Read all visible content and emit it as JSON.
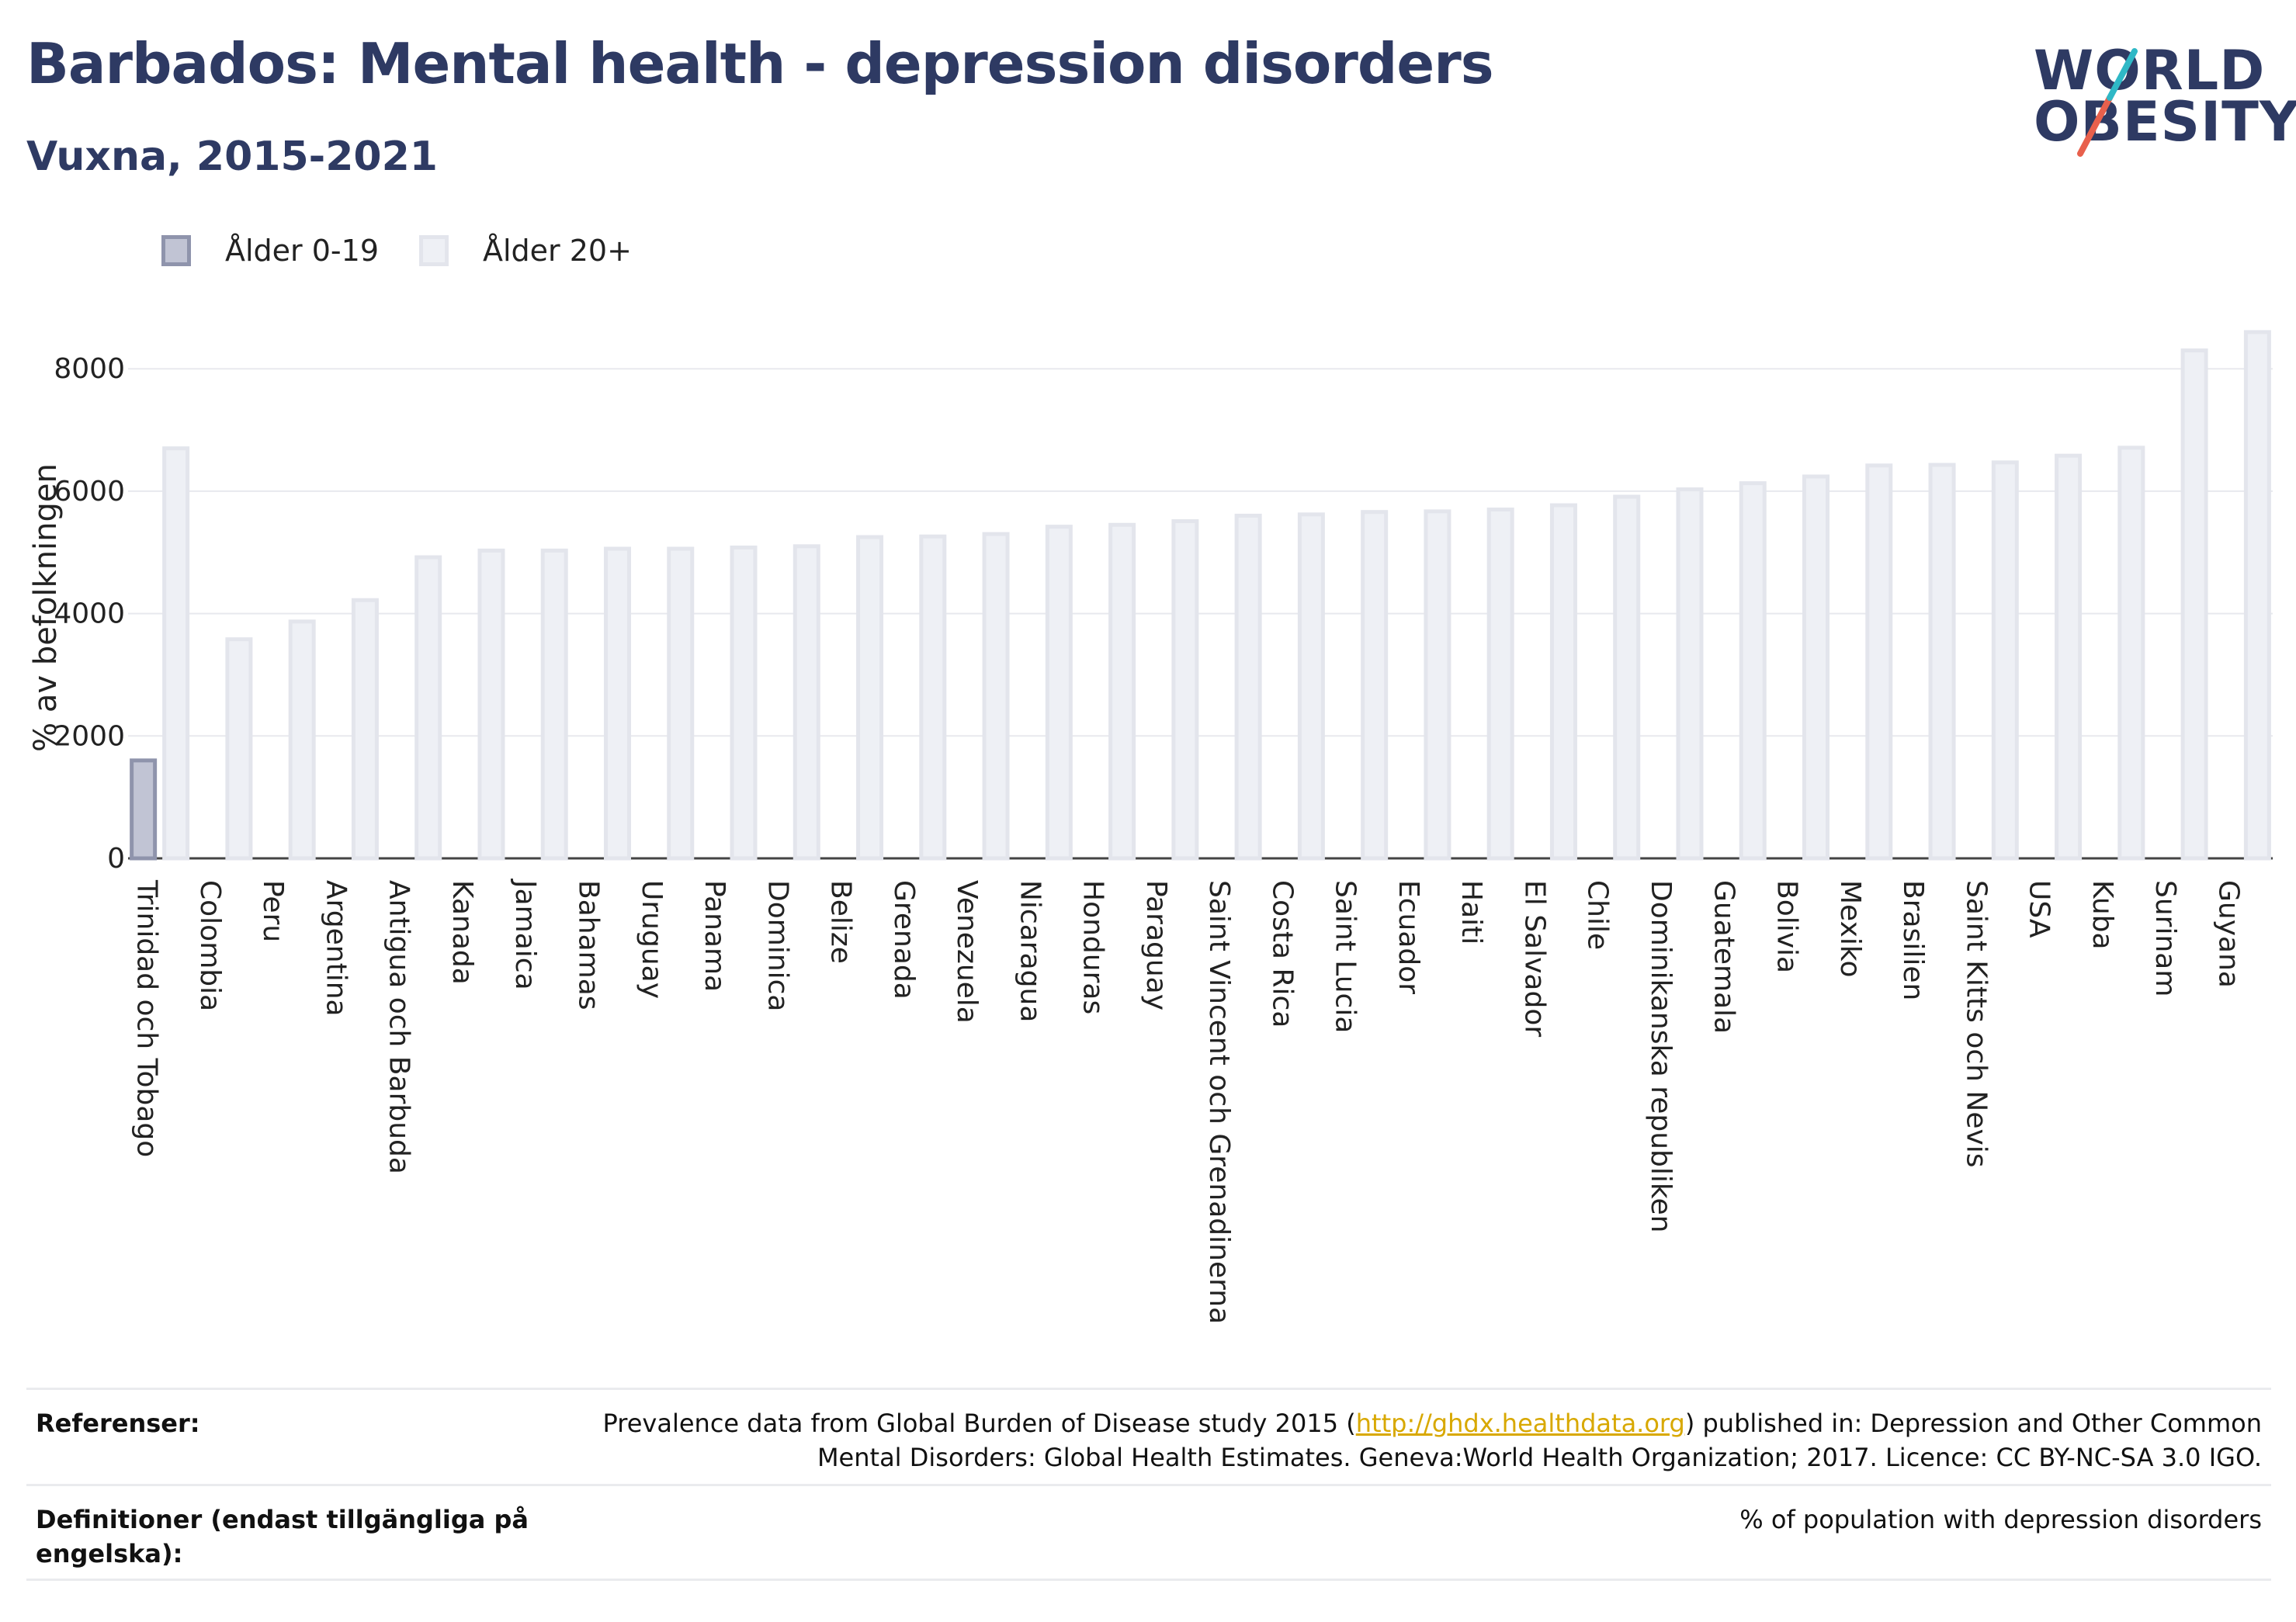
{
  "header": {
    "title": "Barbados: Mental health - depression disorders",
    "subtitle": "Vuxna, 2015-2021"
  },
  "logo": {
    "line1": "WORLD",
    "line2": "OBESITY",
    "accent_colors": [
      "#2fb8c6",
      "#e8604c"
    ]
  },
  "legend": {
    "items": [
      {
        "label": "Ålder 0-19",
        "color": "#c1c4d4"
      },
      {
        "label": "Ålder 20+",
        "color": "#eef0f5"
      }
    ]
  },
  "chart_data": {
    "type": "bar",
    "ylabel": "% av befolkningen",
    "ylim": [
      0,
      8700
    ],
    "yticks": [
      0,
      2000,
      4000,
      6000,
      8000
    ],
    "grid": true,
    "legend_position": "top-left",
    "categories": [
      "Trinidad och Tobago",
      "Colombia",
      "Peru",
      "Argentina",
      "Antigua och Barbuda",
      "Kanada",
      "Jamaica",
      "Bahamas",
      "Uruguay",
      "Panama",
      "Dominica",
      "Belize",
      "Grenada",
      "Venezuela",
      "Nicaragua",
      "Honduras",
      "Paraguay",
      "Saint Vincent och Grenadinerna",
      "Costa Rica",
      "Saint Lucia",
      "Ecuador",
      "Haiti",
      "El Salvador",
      "Chile",
      "Dominikanska republiken",
      "Guatemala",
      "Bolivia",
      "Mexiko",
      "Brasilien",
      "Saint Kitts och Nevis",
      "USA",
      "Kuba",
      "Surinam",
      "Guyana"
    ],
    "series": [
      {
        "name": "Ålder 0-19",
        "color": "#c1c4d4",
        "values": [
          1600,
          null,
          null,
          null,
          null,
          null,
          null,
          null,
          null,
          null,
          null,
          null,
          null,
          null,
          null,
          null,
          null,
          null,
          null,
          null,
          null,
          null,
          null,
          null,
          null,
          null,
          null,
          null,
          null,
          null,
          null,
          null,
          null,
          null
        ]
      },
      {
        "name": "Ålder 20+",
        "color": "#eef0f5",
        "values": [
          6700,
          3580,
          3870,
          4220,
          4920,
          5030,
          5030,
          5060,
          5060,
          5080,
          5100,
          5250,
          5260,
          5300,
          5420,
          5450,
          5510,
          5600,
          5620,
          5660,
          5670,
          5700,
          5770,
          5910,
          6030,
          6130,
          6240,
          6420,
          6430,
          6470,
          6580,
          6710,
          8300,
          8600
        ]
      }
    ]
  },
  "footer": {
    "references_label": "Referenser:",
    "references_text_before": "Prevalence data from Global Burden of Disease study 2015 (",
    "references_link": "http://ghdx.healthdata.org",
    "references_text_after": ") published in: Depression and Other Common",
    "references_line2": "Mental Disorders: Global Health Estimates. Geneva:World Health Organization; 2017. Licence: CC BY-NC-SA 3.0 IGO.",
    "definitions_label_line1": "Definitioner (endast tillgängliga på",
    "definitions_label_line2": "engelska):",
    "definitions_text": "% of population with depression disorders"
  }
}
